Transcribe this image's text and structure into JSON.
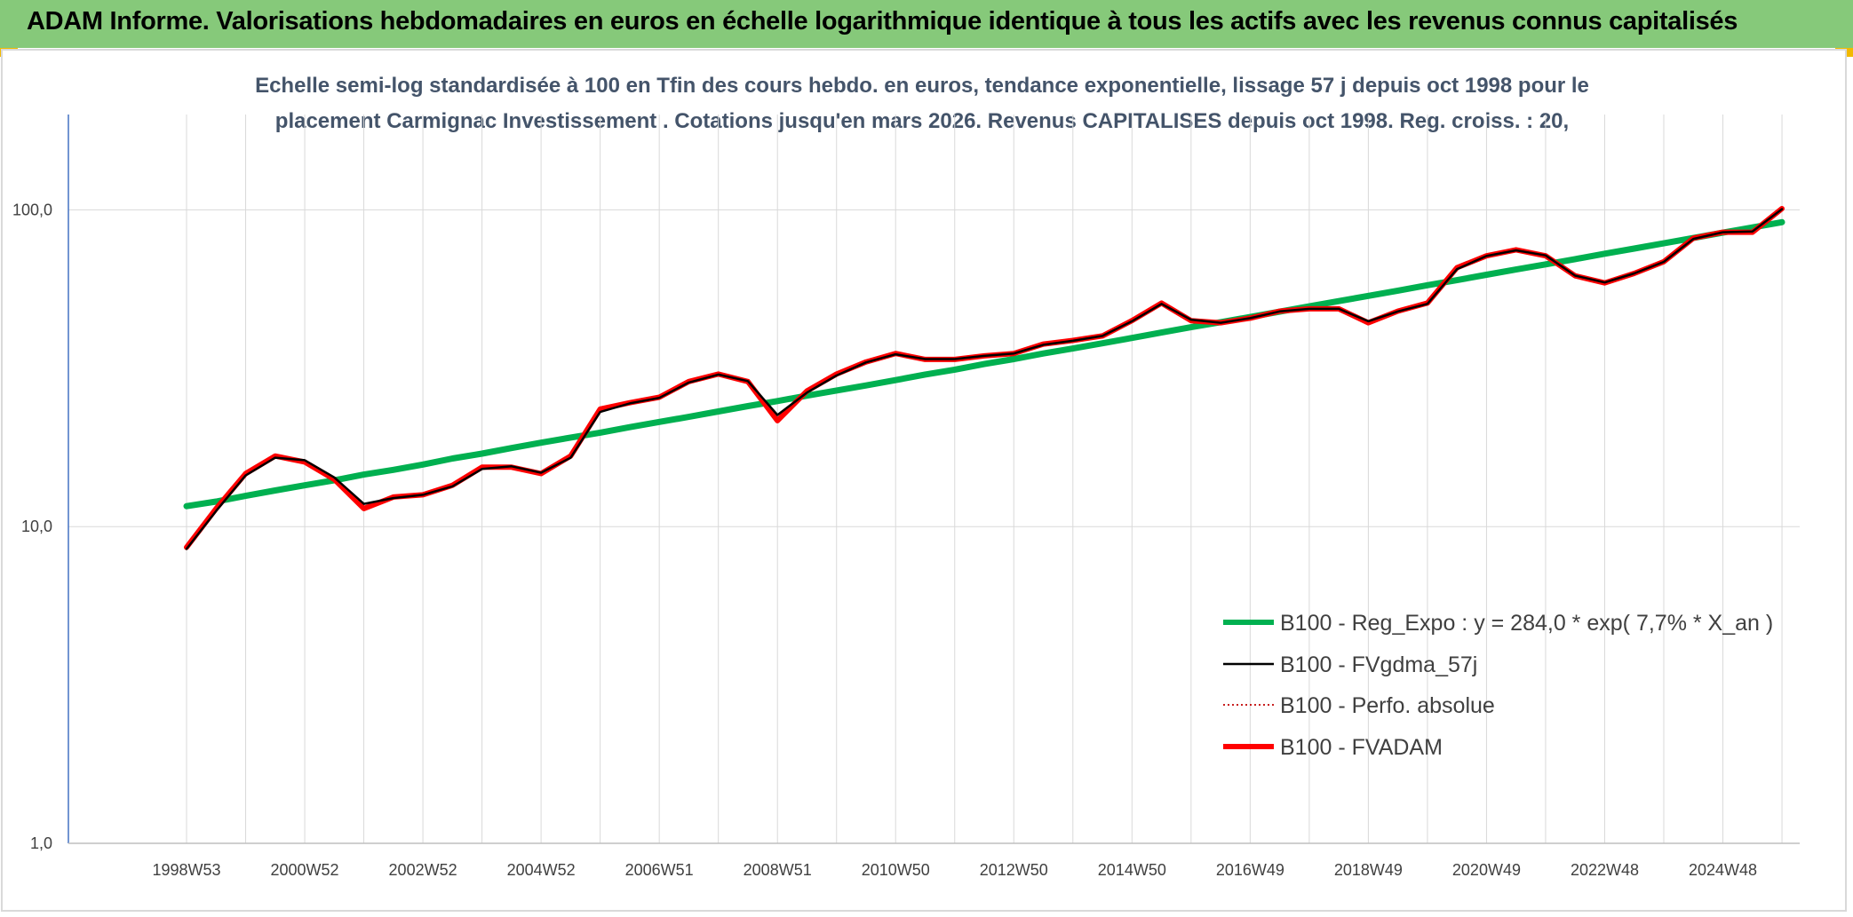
{
  "header": {
    "title": "ADAM Informe. Valorisations hebdomadaires en euros en échelle logarithmique identique à tous les actifs avec les revenus connus capitalisés"
  },
  "chart_data": {
    "type": "line",
    "subtitle": [
      "Echelle semi-log standardisée à 100 en Tfin des cours hebdo. en euros, tendance exponentielle, lissage 57 j depuis oct 1998 pour le",
      "placement Carmignac Investissement . Cotations jusqu'en mars 2026. Revenus CAPITALISES depuis oct 1998. Reg. croiss. : 20,"
    ],
    "log_scale": true,
    "grid": true,
    "legend": "right",
    "ylim": [
      1,
      200
    ],
    "yticks": [
      {
        "value": 1,
        "label": "1,0"
      },
      {
        "value": 10,
        "label": "10,0"
      },
      {
        "value": 100,
        "label": "100,0"
      }
    ],
    "categories": [
      "1998W53",
      null,
      null,
      null,
      "2000W52",
      null,
      null,
      null,
      "2002W52",
      null,
      null,
      null,
      "2004W52",
      null,
      null,
      null,
      "2006W51",
      null,
      null,
      null,
      "2008W51",
      null,
      null,
      null,
      "2010W50",
      null,
      null,
      null,
      "2012W50",
      null,
      null,
      null,
      "2014W50",
      null,
      null,
      null,
      "2016W49",
      null,
      null,
      null,
      "2018W49",
      null,
      null,
      null,
      "2020W49",
      null,
      null,
      null,
      "2022W48",
      null,
      null,
      null,
      "2024W48",
      null,
      null
    ],
    "series": [
      {
        "name": "B100 - Reg_Expo : y = 284,0 * exp( 7,7% *  X_an )",
        "color": "#00b050",
        "line_style": "solid",
        "values": [
          11.6,
          12.0,
          12.5,
          13.0,
          13.5,
          14.0,
          14.6,
          15.1,
          15.7,
          16.4,
          17.0,
          17.7,
          18.4,
          19.1,
          19.8,
          20.6,
          21.4,
          22.2,
          23.1,
          24.0,
          24.9,
          25.9,
          26.9,
          27.9,
          29.0,
          30.2,
          31.3,
          32.6,
          33.8,
          35.2,
          36.5,
          37.9,
          39.4,
          41.0,
          42.6,
          44.2,
          45.9,
          47.7,
          49.6,
          51.5,
          53.5,
          55.6,
          57.8,
          60.0,
          62.4,
          64.8,
          67.3,
          69.9,
          72.7,
          75.5,
          78.4,
          81.5,
          84.7,
          88.0,
          91.4
        ]
      },
      {
        "name": "B100 - FVgdma_57j",
        "color": "#000000",
        "line_style": "solid",
        "values": [
          8.5,
          11.2,
          14.5,
          16.5,
          16.2,
          14.3,
          11.8,
          12.3,
          12.6,
          13.4,
          15.2,
          15.5,
          14.8,
          16.5,
          23.0,
          24.5,
          25.5,
          28.5,
          30.2,
          28.8,
          22.5,
          26.5,
          30.0,
          33.0,
          35.0,
          33.8,
          33.8,
          34.6,
          35.2,
          37.5,
          38.6,
          40.0,
          44.5,
          50.5,
          45.0,
          44.0,
          45.5,
          47.8,
          48.7,
          48.7,
          44.5,
          47.8,
          50.5,
          65.0,
          71.5,
          74.5,
          71.8,
          62.0,
          59.0,
          63.0,
          68.5,
          81.0,
          85.0,
          85.5,
          100.5
        ]
      },
      {
        "name": "B100 - Perfo. absolue",
        "color": "#c00000",
        "line_style": "dotted",
        "values": [
          8.6,
          11.4,
          14.7,
          16.7,
          16.0,
          14.1,
          11.4,
          12.4,
          12.6,
          13.5,
          15.4,
          15.4,
          14.7,
          16.7,
          23.5,
          24.6,
          25.6,
          28.7,
          30.3,
          28.7,
          21.6,
          26.8,
          30.3,
          33.1,
          35.2,
          33.7,
          33.7,
          34.6,
          35.2,
          37.7,
          38.7,
          40.0,
          44.7,
          50.8,
          44.7,
          44.0,
          45.5,
          47.9,
          48.7,
          48.7,
          44.0,
          47.9,
          50.8,
          65.7,
          71.6,
          74.8,
          71.6,
          61.9,
          58.8,
          63.0,
          68.6,
          81.4,
          85.0,
          85.0,
          100.9
        ]
      },
      {
        "name": "B100 - FVADAM",
        "color": "#ff0000",
        "line_style": "solid",
        "values": [
          8.6,
          11.4,
          14.7,
          16.7,
          16.0,
          14.1,
          11.4,
          12.4,
          12.6,
          13.5,
          15.4,
          15.4,
          14.7,
          16.7,
          23.5,
          24.6,
          25.6,
          28.7,
          30.3,
          28.7,
          21.6,
          26.8,
          30.3,
          33.1,
          35.2,
          33.7,
          33.7,
          34.6,
          35.2,
          37.7,
          38.7,
          40.0,
          44.7,
          50.8,
          44.7,
          44.0,
          45.5,
          47.9,
          48.7,
          48.7,
          44.0,
          47.9,
          50.8,
          65.7,
          71.6,
          74.8,
          71.6,
          61.9,
          58.8,
          63.0,
          68.6,
          81.4,
          85.0,
          85.0,
          100.9
        ]
      }
    ]
  }
}
